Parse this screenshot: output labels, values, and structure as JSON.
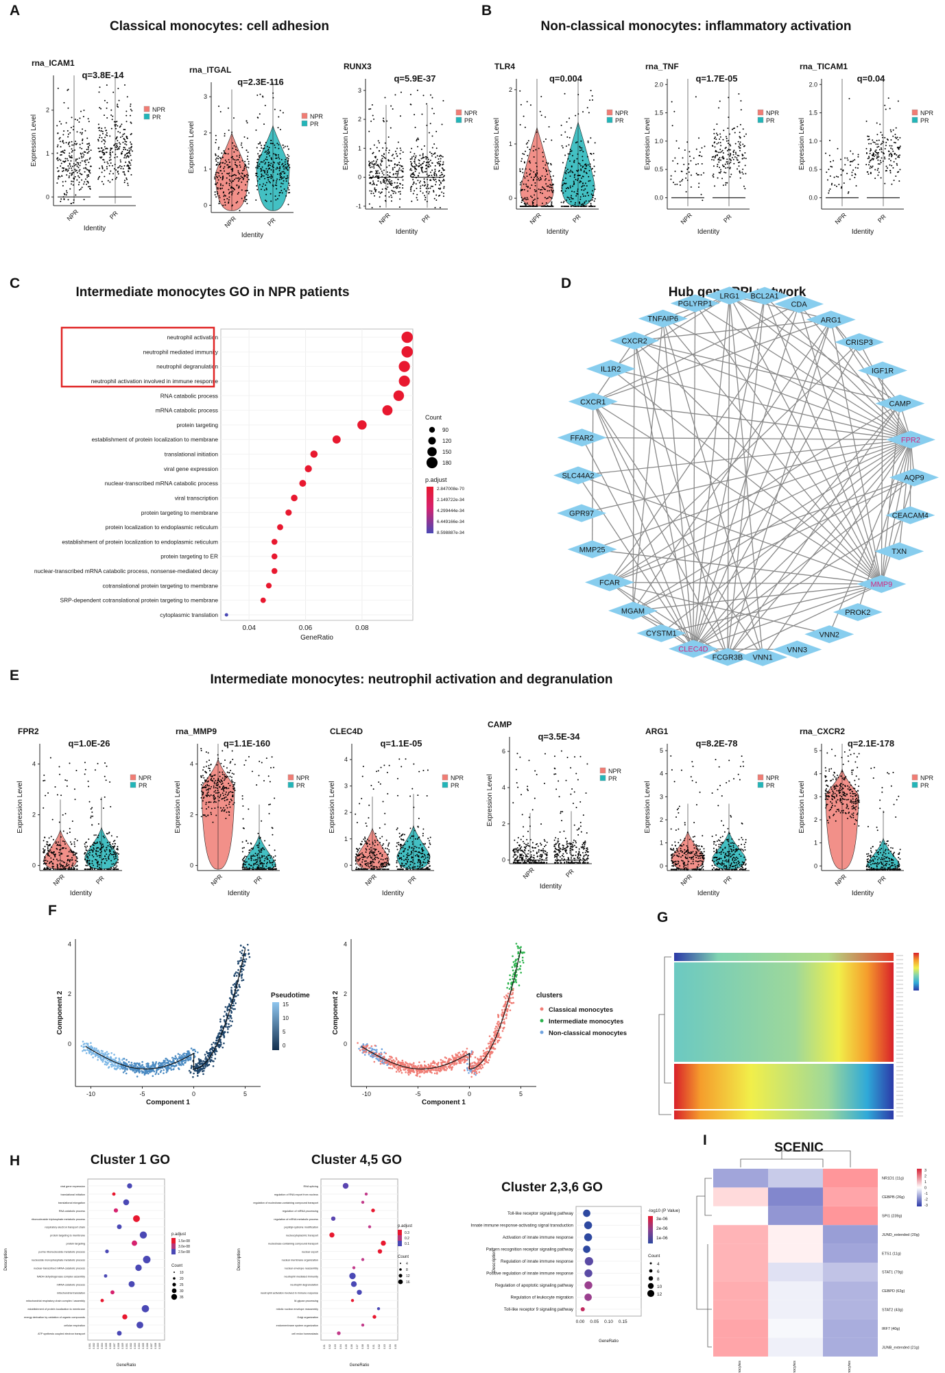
{
  "figure": {
    "panel_letters": [
      "A",
      "B",
      "C",
      "D",
      "E",
      "F",
      "G",
      "H",
      "I"
    ],
    "titles": {
      "A": "Classical monocytes: cell adhesion",
      "B": "Non-classical monocytes: inflammatory activation",
      "C": "Intermediate monocytes GO in NPR patients",
      "D": "Hub gene PPI network",
      "E": "Intermediate monocytes: neutrophil activation and degranulation",
      "H1": "Cluster 1 GO",
      "H2": "Cluster 4,5 GO",
      "H3": "Cluster 2,3,6 GO",
      "I": "SCENIC"
    },
    "groups": [
      "NPR",
      "PR"
    ],
    "ylabel": "Expression Level",
    "xlabel": "Identity",
    "colors": {
      "NPR": "#f07c74",
      "PR": "#22b5b8",
      "accent": "#e21d3c",
      "node": "#87cdee",
      "edge": "#888888",
      "box": "#e02424"
    }
  },
  "chart_data": [
    {
      "id": "violin-panels",
      "type": "violin",
      "panels": [
        {
          "panel": "A",
          "gene": "rna_ICAM1",
          "q": "q=3.8E-14",
          "yticks": [
            "0",
            "1",
            "2"
          ],
          "ymax": 2.8,
          "medians": [
            0.8,
            1.0
          ],
          "violin": false
        },
        {
          "panel": "A",
          "gene": "rna_ITGAL",
          "q": "q=2.3E-116",
          "yticks": [
            "0",
            "1",
            "2",
            "3"
          ],
          "ymax": 3.4,
          "medians": [
            0.8,
            1.0
          ],
          "violin": true
        },
        {
          "panel": "A",
          "gene": "RUNX3",
          "q": "q=5.9E-37",
          "yticks": [
            "-1",
            "0",
            "1",
            "2",
            "3"
          ],
          "ymax": 3.4,
          "ymin": -1.1,
          "medians": [
            0.1,
            0.1
          ],
          "violin": false
        },
        {
          "panel": "B",
          "gene": "TLR4",
          "q": "q=0.004",
          "yticks": [
            "0",
            "1",
            "2"
          ],
          "ymax": 2.2,
          "medians": [
            0.1,
            0.2
          ],
          "violin": true
        },
        {
          "panel": "B",
          "gene": "rna_TNF",
          "q": "q=1.7E-05",
          "yticks": [
            "0.0",
            "0.5",
            "1.0",
            "1.5",
            "2.0"
          ],
          "ymax": 2.1,
          "medians": [
            0,
            0
          ],
          "violin": false
        },
        {
          "panel": "B",
          "gene": "rna_TICAM1",
          "q": "q=0.04",
          "yticks": [
            "0.0",
            "0.5",
            "1.0",
            "1.5",
            "2.0"
          ],
          "ymax": 2.1,
          "medians": [
            0,
            0
          ],
          "violin": false
        },
        {
          "panel": "E",
          "gene": "FPR2",
          "q": "q=1.0E-26",
          "yticks": [
            "0",
            "2",
            "4"
          ],
          "ymax": 4.8,
          "medians": [
            0.2,
            0.3
          ],
          "violin": true
        },
        {
          "panel": "E",
          "gene": "rna_MMP9",
          "q": "q=1.1E-160",
          "yticks": [
            "0",
            "2",
            "4"
          ],
          "ymax": 4.8,
          "medians": [
            3.0,
            0
          ],
          "violin": true
        },
        {
          "panel": "E",
          "gene": "CLEC4D",
          "q": "q=1.1E-05",
          "yticks": [
            "0",
            "1",
            "2",
            "3",
            "4"
          ],
          "ymax": 4.6,
          "medians": [
            0.2,
            0.3
          ],
          "violin": true
        },
        {
          "panel": "E",
          "gene": "CAMP",
          "q": "q=3.5E-34",
          "yticks": [
            "0",
            "2",
            "4",
            "6"
          ],
          "ymax": 6.8,
          "medians": [
            0.2,
            0.3
          ],
          "violin": false
        },
        {
          "panel": "E",
          "gene": "ARG1",
          "q": "q=8.2E-78",
          "yticks": [
            "0",
            "1",
            "2",
            "3",
            "4",
            "5"
          ],
          "ymax": 5.3,
          "medians": [
            0.3,
            0.3
          ],
          "violin": true
        },
        {
          "panel": "E",
          "gene": "rna_CXCR2",
          "q": "q=2.1E-178",
          "yticks": [
            "0",
            "1",
            "2",
            "3",
            "4",
            "5"
          ],
          "ymax": 5.3,
          "medians": [
            3.0,
            0
          ],
          "violin": true
        }
      ]
    },
    {
      "id": "go-dotplot-C",
      "type": "scatter",
      "title": "Intermediate monocytes GO in NPR patients",
      "xlabel": "GeneRatio",
      "xlim": [
        0.03,
        0.098
      ],
      "xticks": [
        "0.04",
        "0.06",
        "0.08"
      ],
      "terms": [
        "neutrophil activation",
        "neutrophil mediated immunity",
        "neutrophil degranulation",
        "neutrophil activation involved in immune response",
        "RNA catabolic process",
        "mRNA catabolic process",
        "protein targeting",
        "establishment of protein localization to membrane",
        "translational initiation",
        "viral gene expression",
        "nuclear-transcribed mRNA catabolic process",
        "viral transcription",
        "protein targeting to membrane",
        "protein localization to endoplasmic reticulum",
        "establishment of protein localization to endoplasmic reticulum",
        "protein targeting to ER",
        "nuclear-transcribed mRNA catabolic process, nonsense-mediated decay",
        "cotranslational protein targeting to membrane",
        "SRP-dependent cotranslational protein targeting to membrane",
        "cytoplasmic translation"
      ],
      "gene_ratio": [
        0.096,
        0.096,
        0.095,
        0.095,
        0.093,
        0.089,
        0.08,
        0.071,
        0.063,
        0.061,
        0.059,
        0.056,
        0.054,
        0.051,
        0.049,
        0.049,
        0.049,
        0.047,
        0.045,
        0.032
      ],
      "count": [
        185,
        185,
        182,
        180,
        172,
        165,
        150,
        130,
        115,
        112,
        108,
        104,
        99,
        95,
        92,
        92,
        91,
        88,
        84,
        50
      ],
      "legend_count_title": "Count",
      "legend_count": [
        "90",
        "120",
        "150",
        "180"
      ],
      "legend_padj_title": "p.adjust",
      "legend_padj": [
        "2.847008e-70",
        "2.149722e-34",
        "4.299444e-34",
        "6.449166e-34",
        "8.598887e-34"
      ]
    },
    {
      "id": "ppi-network-D",
      "type": "network",
      "title": "Hub gene PPI network",
      "nodes": [
        "CDA",
        "ARG1",
        "CRISP3",
        "IGF1R",
        "CAMP",
        "FPR2",
        "AQP9",
        "CEACAM4",
        "TXN",
        "MMP9",
        "PROK2",
        "VNN2",
        "VNN3",
        "VNN1",
        "FCGR3B",
        "CLEC4D",
        "CYSTM1",
        "MGAM",
        "FCAR",
        "MMP25",
        "GPR97",
        "SLC44A2",
        "FFAR2",
        "CXCR1",
        "IL1R2",
        "CXCR2",
        "TNFAIP6",
        "PGLYRP1",
        "LRG1",
        "BCL2A1"
      ],
      "highlight": [
        "FPR2",
        "MMP9",
        "CLEC4D"
      ],
      "edges": [
        [
          5,
          0
        ],
        [
          5,
          1
        ],
        [
          5,
          2
        ],
        [
          5,
          4
        ],
        [
          5,
          6
        ],
        [
          5,
          7
        ],
        [
          5,
          8
        ],
        [
          5,
          9
        ],
        [
          5,
          10
        ],
        [
          5,
          11
        ],
        [
          5,
          13
        ],
        [
          5,
          14
        ],
        [
          5,
          15
        ],
        [
          5,
          16
        ],
        [
          5,
          17
        ],
        [
          5,
          18
        ],
        [
          5,
          19
        ],
        [
          5,
          20
        ],
        [
          5,
          21
        ],
        [
          5,
          22
        ],
        [
          5,
          23
        ],
        [
          5,
          24
        ],
        [
          5,
          25
        ],
        [
          5,
          26
        ],
        [
          5,
          27
        ],
        [
          5,
          28
        ],
        [
          5,
          29
        ],
        [
          9,
          0
        ],
        [
          9,
          1
        ],
        [
          9,
          3
        ],
        [
          9,
          4
        ],
        [
          9,
          6
        ],
        [
          9,
          14
        ],
        [
          9,
          15
        ],
        [
          9,
          16
        ],
        [
          9,
          17
        ],
        [
          9,
          18
        ],
        [
          9,
          19
        ],
        [
          9,
          21
        ],
        [
          9,
          23
        ],
        [
          9,
          24
        ],
        [
          9,
          25
        ],
        [
          9,
          26
        ],
        [
          9,
          27
        ],
        [
          9,
          28
        ],
        [
          9,
          29
        ],
        [
          15,
          0
        ],
        [
          15,
          1
        ],
        [
          15,
          2
        ],
        [
          15,
          4
        ],
        [
          15,
          6
        ],
        [
          15,
          7
        ],
        [
          15,
          12
        ],
        [
          15,
          17
        ],
        [
          15,
          18
        ],
        [
          15,
          21
        ],
        [
          15,
          22
        ],
        [
          15,
          23
        ],
        [
          15,
          25
        ],
        [
          15,
          26
        ],
        [
          15,
          27
        ],
        [
          15,
          28
        ],
        [
          15,
          29
        ],
        [
          1,
          4
        ],
        [
          1,
          14
        ],
        [
          1,
          17
        ],
        [
          1,
          23
        ],
        [
          1,
          25
        ],
        [
          1,
          28
        ],
        [
          4,
          14
        ],
        [
          4,
          18
        ],
        [
          4,
          28
        ],
        [
          4,
          25
        ],
        [
          14,
          17
        ],
        [
          14,
          23
        ],
        [
          14,
          25
        ],
        [
          14,
          28
        ],
        [
          14,
          18
        ],
        [
          13,
          28
        ],
        [
          13,
          23
        ],
        [
          13,
          26
        ],
        [
          25,
          23
        ],
        [
          25,
          17
        ],
        [
          25,
          28
        ],
        [
          6,
          18
        ],
        [
          6,
          17
        ],
        [
          28,
          24
        ],
        [
          28,
          26
        ],
        [
          0,
          23
        ],
        [
          0,
          18
        ],
        [
          2,
          18
        ],
        [
          19,
          23
        ],
        [
          26,
          17
        ],
        [
          29,
          14
        ],
        [
          11,
          18
        ]
      ]
    },
    {
      "id": "trajectory-F",
      "type": "scatter",
      "xlabel": "Component 1",
      "ylabel": "Component 2",
      "xticks": [
        "-10",
        "-5",
        "0",
        "5"
      ],
      "yticks": [
        "0",
        "2",
        "4"
      ],
      "xlim": [
        -11.5,
        6.5
      ],
      "ylim": [
        -1.7,
        4.2
      ],
      "legend1_title": "Pseudotime",
      "legend1_ticks": [
        "0",
        "5",
        "10",
        "15"
      ],
      "legend2_title": "clusters",
      "clusters": [
        "Classical monocytes",
        "Intermediate monocytes",
        "Non-classical monocytes"
      ],
      "cluster_colors": [
        "#f07c74",
        "#2bb24c",
        "#6fa3e0"
      ]
    },
    {
      "id": "heatmap-G",
      "type": "heatmap",
      "colorbar": [
        "#2c39a8",
        "#2fa9d8",
        "#7fd3b0",
        "#f1ef4a",
        "#f59d2c",
        "#d8202a"
      ]
    },
    {
      "id": "go-H1",
      "type": "scatter",
      "title": "Cluster 1 GO",
      "xlabel": "GeneRatio",
      "ylabel": "Description",
      "terms": [
        "viral gene expression",
        "translational initiation",
        "translational elongation",
        "RNA catabolic process",
        "ribonucleoside triphosphate metabolic process",
        "respiratory electron transport chain",
        "protein targeting to membrane",
        "protein targeting",
        "purine ribonucleoside metabolic process",
        "nucleoside monophosphate metabolic process",
        "nuclear-transcribed mRNA catabolic process",
        "NADH dehydrogenase complex assembly",
        "mRNA catabolic process",
        "mitochondrial translation",
        "mitochondrial respiratory chain complex I assembly",
        "establishment of protein localization to membrane",
        "energy derivation by oxidation of organic compounds",
        "cellular respiration",
        "ATP synthesis coupled electron transport"
      ],
      "gene_ratio": [
        0.55,
        0.32,
        0.5,
        0.35,
        0.65,
        0.4,
        0.75,
        0.62,
        0.22,
        0.8,
        0.68,
        0.2,
        0.58,
        0.3,
        0.15,
        0.78,
        0.48,
        0.7,
        0.4
      ],
      "count": [
        20,
        10,
        25,
        15,
        30,
        18,
        32,
        22,
        12,
        34,
        28,
        10,
        26,
        14,
        10,
        33,
        20,
        30,
        18
      ],
      "legend_padj_title": "p.adjust",
      "legend_padj": [
        "1.5e-08",
        "3.0e-08",
        "2.5e-08"
      ],
      "legend_count_title": "Count",
      "legend_count": [
        "10",
        "20",
        "25",
        "30",
        "35"
      ]
    },
    {
      "id": "go-H2",
      "type": "scatter",
      "title": "Cluster 4,5 GO",
      "xlabel": "GeneRatio",
      "ylabel": "Description",
      "terms": [
        "RNA splicing",
        "regulation of RNA export from nucleus",
        "regulation of nucleobase-containing compound transport",
        "regulation of mRNA processing",
        "regulation of mRNA metabolic process",
        "peptidyl-cysteine modification",
        "nucleocytoplasmic transport",
        "nucleobase-containing compound transport",
        "nuclear export",
        "nuclear membrane organization",
        "nuclear envelope reassembly",
        "neutrophil mediated immunity",
        "neutrophil degranulation",
        "neutrophil activation involved in immune response",
        "M-glycan processing",
        "mitotic nuclear envelope reassembly",
        "Golgi organization",
        "endomembrane system organization",
        "cell redox homeostasis"
      ],
      "gene_ratio": [
        0.3,
        0.6,
        0.55,
        0.7,
        0.12,
        0.65,
        0.1,
        0.85,
        0.8,
        0.55,
        0.42,
        0.4,
        0.42,
        0.5,
        0.4,
        0.78,
        0.72,
        0.55,
        0.2
      ],
      "count": [
        12,
        4,
        4,
        6,
        8,
        4,
        10,
        10,
        8,
        4,
        4,
        14,
        12,
        10,
        4,
        4,
        6,
        4,
        6
      ],
      "legend_padj_title": "p.adjust",
      "legend_padj": [
        "0.3",
        "0.2",
        "0.1"
      ],
      "legend_count_title": "Count",
      "legend_count": [
        "4",
        "8",
        "12",
        "16"
      ]
    },
    {
      "id": "go-H3",
      "type": "scatter",
      "title": "Cluster 2,3,6 GO",
      "xlabel": "GeneRatio",
      "ylabel": "Description",
      "xlim": [
        0.0,
        0.2
      ],
      "xticks": [
        "0.00",
        "0.05",
        "0.10",
        "0.15"
      ],
      "terms": [
        "Toll-like receptor signaling pathway",
        "Innate immune response-activating signal transduction",
        "Activation of innate immune response",
        "Pattern recognition receptor signaling pathway",
        "Regulation of innate immune response",
        "Positive regulation of innate immune response",
        "Regulation of apoptotic signaling pathway",
        "Regulation of leukocyte migration",
        "Toll-like receptor 9 signaling pathway"
      ],
      "gene_ratio": [
        0.115,
        0.14,
        0.14,
        0.115,
        0.155,
        0.145,
        0.145,
        0.14,
        0.045
      ],
      "count": [
        10,
        11,
        11,
        10,
        12,
        11,
        11,
        10,
        4
      ],
      "legend_p_title": "-log10 (P Value)",
      "legend_p": [
        "3e-06",
        "2e-06",
        "1e-06"
      ],
      "legend_count_title": "Count",
      "legend_count": [
        "4",
        "6",
        "8",
        "10",
        "12"
      ]
    },
    {
      "id": "scenic-I",
      "type": "heatmap",
      "title": "SCENIC",
      "columns": [
        "Classical monocytes",
        "Intermediate monocytes",
        "Non-classical monocytes"
      ],
      "rows": [
        "NR1D1 (11g)",
        "CEBPB (26g)",
        "SPI1 (239g)",
        "JUND_extended (20g)",
        "ETS1 (11g)",
        "STAT1 (79g)",
        "CEBPD (62g)",
        "STAT2 (43g)",
        "IRF7 (40g)",
        "JUNB_extended (21g)"
      ],
      "values": [
        [
          -1.2,
          -0.7,
          1.4
        ],
        [
          0.5,
          -1.6,
          1.2
        ],
        [
          0.0,
          -1.4,
          1.4
        ],
        [
          1.0,
          0.2,
          -1.3
        ],
        [
          1.0,
          0.2,
          -1.2
        ],
        [
          1.0,
          -0.4,
          -0.8
        ],
        [
          1.1,
          -0.2,
          -1.0
        ],
        [
          1.1,
          -0.2,
          -1.0
        ],
        [
          1.2,
          -0.1,
          -1.1
        ],
        [
          1.2,
          -0.2,
          -1.1
        ]
      ],
      "legend_ticks": [
        "3",
        "2",
        "1",
        "0",
        "-1",
        "-2",
        "-3"
      ]
    }
  ]
}
